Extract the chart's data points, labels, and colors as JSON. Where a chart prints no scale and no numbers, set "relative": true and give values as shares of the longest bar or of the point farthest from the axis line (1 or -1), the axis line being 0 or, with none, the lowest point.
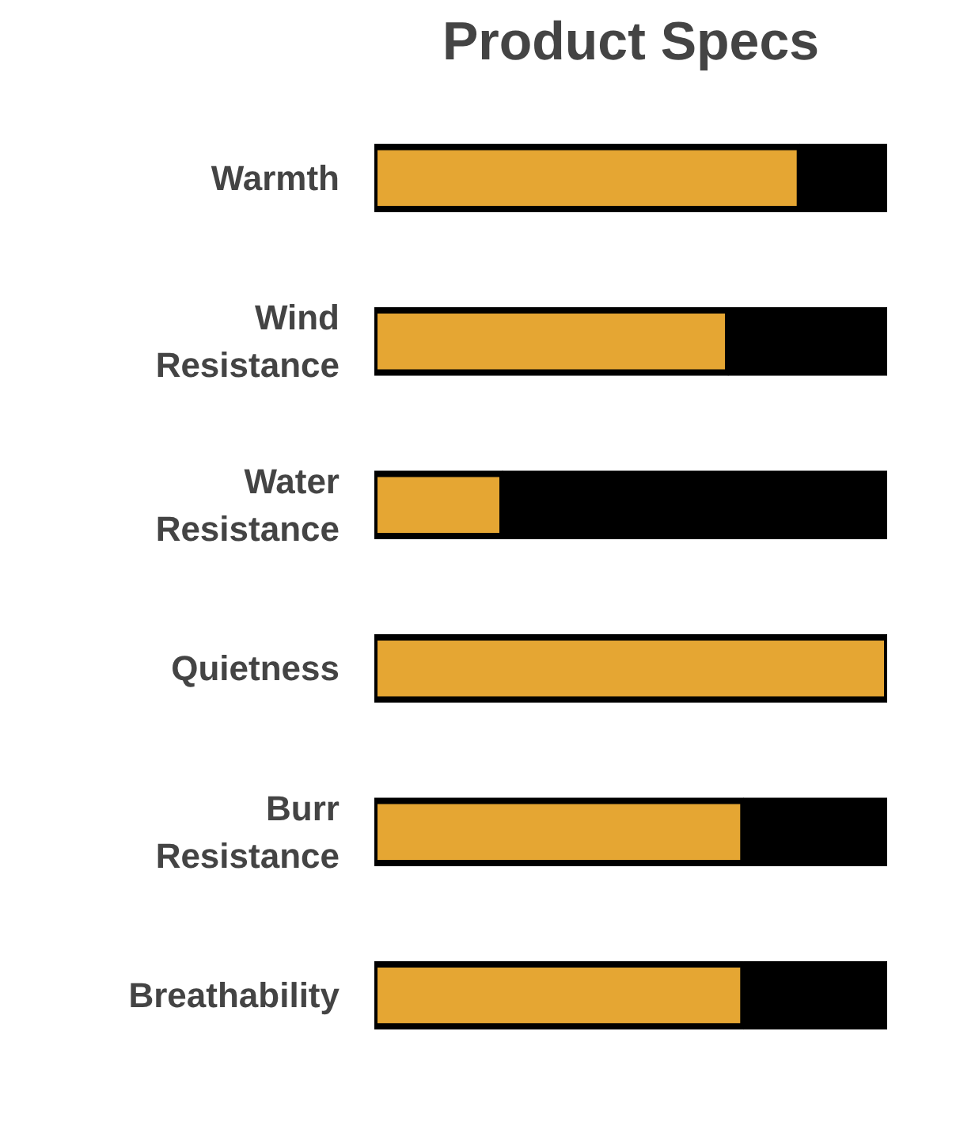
{
  "chart_data": {
    "type": "bar",
    "orientation": "horizontal",
    "stacked": true,
    "relative": true,
    "title": "Product Specs",
    "categories": [
      "Warmth",
      "Wind\nResistance",
      "Water\nResistance",
      "Quietness",
      "Burr\nResistance",
      "Breathability"
    ],
    "series": [
      {
        "color": "#e5a633",
        "values": [
          0.83,
          0.69,
          0.25,
          1,
          0.72,
          0.72
        ]
      },
      {
        "color": "#000000",
        "values": [
          0.17,
          0.31,
          0.75,
          0,
          0.28,
          0.28
        ]
      }
    ],
    "grid": false
  }
}
